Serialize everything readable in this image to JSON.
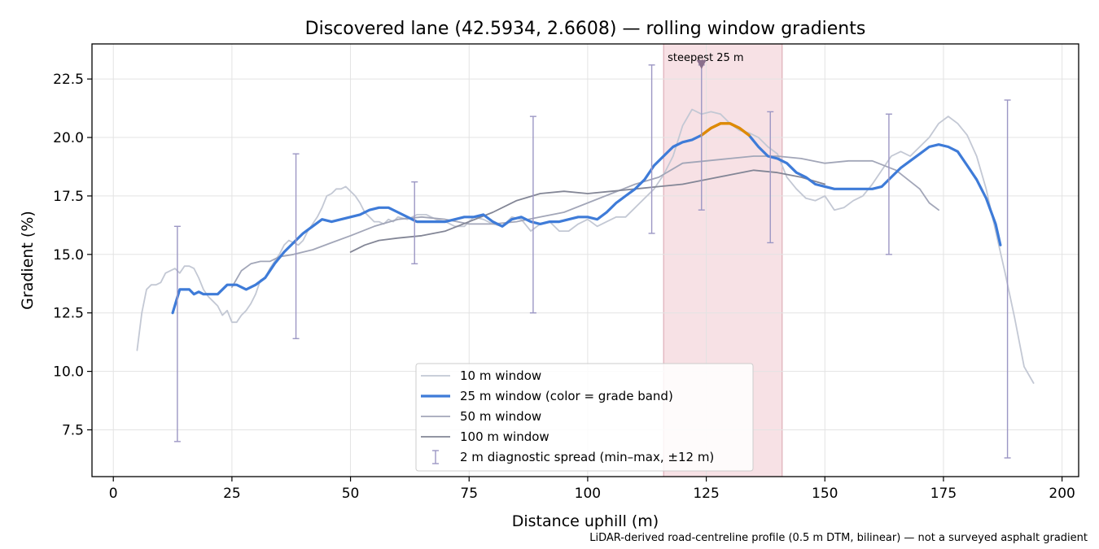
{
  "chart_data": {
    "type": "line",
    "title": "Discovered lane (42.5934, 2.6608) — rolling window gradients",
    "xlabel": "Distance uphill (m)",
    "ylabel": "Gradient (%)",
    "xlim": [
      -4.5,
      203.5
    ],
    "ylim": [
      5.5,
      24.0
    ],
    "x_ticks": [
      0,
      25,
      50,
      75,
      100,
      125,
      150,
      175,
      200
    ],
    "y_ticks": [
      7.5,
      10.0,
      12.5,
      15.0,
      17.5,
      20.0,
      22.5
    ],
    "grid": true,
    "legend_position": "bottom-center",
    "footnote": "LiDAR-derived road-centreline profile (0.5 m DTM, bilinear) — not a surveyed asphalt gradient",
    "steepest_window": {
      "label": "steepest 25 m",
      "x_start": 116,
      "x_end": 141,
      "marker_x": 124,
      "marker_y": 23.1
    },
    "colors": {
      "w10": "#c3c8d4",
      "w25": "#3e7bd8",
      "w25_steep": "#e08a00",
      "w50": "#a2a6b8",
      "w100": "#838696",
      "spread": "#9c97c4",
      "highlight": "#f2cdd3",
      "highlight_label": "#c2334a",
      "marker": "#8a6f8c"
    },
    "legend": [
      {
        "key": "w10",
        "label": "10 m window"
      },
      {
        "key": "w25",
        "label": "25 m window (color = grade band)"
      },
      {
        "key": "w50",
        "label": "50 m window"
      },
      {
        "key": "w100",
        "label": "100 m window"
      },
      {
        "key": "spread",
        "label": "2 m diagnostic spread (min–max, ±12 m)"
      }
    ],
    "series": [
      {
        "name": "10 m window",
        "key": "w10",
        "x": [
          5,
          6,
          7,
          8,
          9,
          10,
          11,
          12,
          13,
          14,
          15,
          16,
          17,
          18,
          19,
          20,
          21,
          22,
          23,
          24,
          25,
          26,
          27,
          28,
          29,
          30,
          31,
          32,
          33,
          34,
          35,
          36,
          37,
          38,
          39,
          40,
          41,
          42,
          43,
          44,
          45,
          46,
          47,
          48,
          49,
          50,
          51,
          52,
          53,
          54,
          55,
          56,
          57,
          58,
          59,
          60,
          62,
          64,
          66,
          68,
          70,
          72,
          74,
          76,
          78,
          80,
          82,
          84,
          86,
          88,
          90,
          92,
          94,
          96,
          98,
          100,
          102,
          104,
          106,
          108,
          110,
          112,
          114,
          116,
          118,
          120,
          122,
          124,
          126,
          128,
          130,
          132,
          134,
          136,
          138,
          140,
          142,
          144,
          146,
          148,
          150,
          152,
          154,
          156,
          158,
          160,
          162,
          164,
          166,
          168,
          170,
          172,
          174,
          176,
          178,
          180,
          182,
          184,
          186,
          188,
          190,
          192,
          194
        ],
        "values": [
          10.9,
          12.5,
          13.5,
          13.7,
          13.7,
          13.8,
          14.2,
          14.3,
          14.4,
          14.2,
          14.5,
          14.5,
          14.4,
          14.0,
          13.5,
          13.2,
          13.0,
          12.8,
          12.4,
          12.6,
          12.1,
          12.1,
          12.4,
          12.6,
          12.9,
          13.3,
          13.9,
          14.0,
          14.4,
          14.7,
          15.0,
          15.4,
          15.6,
          15.5,
          15.4,
          15.6,
          16.0,
          16.3,
          16.6,
          17.0,
          17.5,
          17.6,
          17.8,
          17.8,
          17.9,
          17.7,
          17.5,
          17.2,
          16.8,
          16.6,
          16.4,
          16.4,
          16.3,
          16.5,
          16.4,
          16.6,
          16.5,
          16.7,
          16.7,
          16.5,
          16.4,
          16.2,
          16.2,
          16.6,
          16.5,
          16.3,
          16.2,
          16.6,
          16.5,
          16.0,
          16.3,
          16.4,
          16.0,
          16.0,
          16.3,
          16.5,
          16.2,
          16.4,
          16.6,
          16.6,
          17.0,
          17.4,
          17.8,
          18.4,
          19.2,
          20.5,
          21.2,
          21.0,
          21.1,
          21.0,
          20.6,
          20.3,
          20.2,
          20.0,
          19.6,
          19.3,
          18.3,
          17.8,
          17.4,
          17.3,
          17.5,
          16.9,
          17.0,
          17.3,
          17.5,
          18.0,
          18.6,
          19.2,
          19.4,
          19.2,
          19.6,
          20.0,
          20.6,
          20.9,
          20.6,
          20.1,
          19.2,
          17.8,
          16.0,
          14.2,
          12.3,
          10.2,
          9.5
        ]
      },
      {
        "name": "25 m window",
        "key": "w25",
        "x": [
          12.5,
          14,
          15,
          16,
          17,
          18,
          19,
          20,
          22,
          24,
          25,
          26,
          28,
          30,
          32,
          34,
          36,
          38,
          40,
          42,
          44,
          46,
          48,
          50,
          52,
          54,
          56,
          58,
          60,
          62,
          64,
          66,
          68,
          70,
          72,
          74,
          76,
          78,
          80,
          82,
          84,
          86,
          88,
          90,
          92,
          94,
          96,
          98,
          100,
          102,
          104,
          106,
          108,
          110,
          112,
          114,
          116,
          118,
          120,
          122,
          124,
          126,
          128,
          130,
          132,
          134,
          136,
          138,
          140,
          142,
          144,
          146,
          148,
          150,
          152,
          154,
          156,
          158,
          160,
          162,
          164,
          166,
          168,
          170,
          172,
          174,
          176,
          178,
          180,
          182,
          184,
          186,
          187
        ],
        "values": [
          12.5,
          13.5,
          13.5,
          13.5,
          13.3,
          13.4,
          13.3,
          13.3,
          13.3,
          13.7,
          13.7,
          13.7,
          13.5,
          13.7,
          14.0,
          14.6,
          15.1,
          15.5,
          15.9,
          16.2,
          16.5,
          16.4,
          16.5,
          16.6,
          16.7,
          16.9,
          17.0,
          17.0,
          16.8,
          16.6,
          16.4,
          16.4,
          16.4,
          16.4,
          16.5,
          16.6,
          16.6,
          16.7,
          16.4,
          16.2,
          16.5,
          16.6,
          16.4,
          16.3,
          16.4,
          16.4,
          16.5,
          16.6,
          16.6,
          16.5,
          16.8,
          17.2,
          17.5,
          17.8,
          18.2,
          18.8,
          19.2,
          19.6,
          19.8,
          19.9,
          20.1,
          20.4,
          20.6,
          20.6,
          20.4,
          20.1,
          19.6,
          19.2,
          19.1,
          18.9,
          18.5,
          18.3,
          18.0,
          17.9,
          17.8,
          17.8,
          17.8,
          17.8,
          17.8,
          17.9,
          18.3,
          18.7,
          19.0,
          19.3,
          19.6,
          19.7,
          19.6,
          19.4,
          18.8,
          18.2,
          17.4,
          16.3,
          15.4
        ]
      },
      {
        "name": "50 m window",
        "key": "w50",
        "x": [
          25,
          27,
          29,
          31,
          33,
          35,
          38,
          42,
          46,
          50,
          55,
          60,
          65,
          70,
          75,
          80,
          85,
          90,
          95,
          100,
          105,
          110,
          115,
          120,
          125,
          130,
          135,
          140,
          145,
          150,
          155,
          160,
          165,
          170,
          172,
          174
        ],
        "values": [
          13.6,
          14.3,
          14.6,
          14.7,
          14.7,
          14.9,
          15.0,
          15.2,
          15.5,
          15.8,
          16.2,
          16.5,
          16.6,
          16.5,
          16.3,
          16.3,
          16.4,
          16.6,
          16.8,
          17.2,
          17.6,
          18.0,
          18.3,
          18.9,
          19.0,
          19.1,
          19.2,
          19.2,
          19.1,
          18.9,
          19.0,
          19.0,
          18.6,
          17.8,
          17.2,
          16.9
        ]
      },
      {
        "name": "100 m window",
        "key": "w100",
        "x": [
          50,
          53,
          56,
          60,
          65,
          70,
          75,
          80,
          85,
          90,
          95,
          100,
          105,
          110,
          115,
          120,
          125,
          130,
          135,
          140,
          145,
          150
        ],
        "values": [
          15.1,
          15.4,
          15.6,
          15.7,
          15.8,
          16.0,
          16.4,
          16.8,
          17.3,
          17.6,
          17.7,
          17.6,
          17.7,
          17.8,
          17.9,
          18.0,
          18.2,
          18.4,
          18.6,
          18.5,
          18.3,
          18.0
        ]
      }
    ],
    "steep_segment": {
      "name": "25 m window — steepest grade band",
      "x": [
        124,
        126,
        128,
        130,
        132,
        134
      ],
      "values": [
        20.1,
        20.4,
        20.6,
        20.6,
        20.4,
        20.1
      ]
    },
    "error_bars": {
      "name": "2 m diagnostic spread (min–max, ±12 m)",
      "x": [
        13.5,
        38.5,
        63.5,
        88.5,
        113.5,
        124,
        138.5,
        163.5,
        188.5
      ],
      "low": [
        7.0,
        11.4,
        14.6,
        12.5,
        15.9,
        16.9,
        15.5,
        15.0,
        6.3
      ],
      "high": [
        16.2,
        19.3,
        18.1,
        20.9,
        23.1,
        23.1,
        21.1,
        21.0,
        21.6
      ]
    }
  }
}
